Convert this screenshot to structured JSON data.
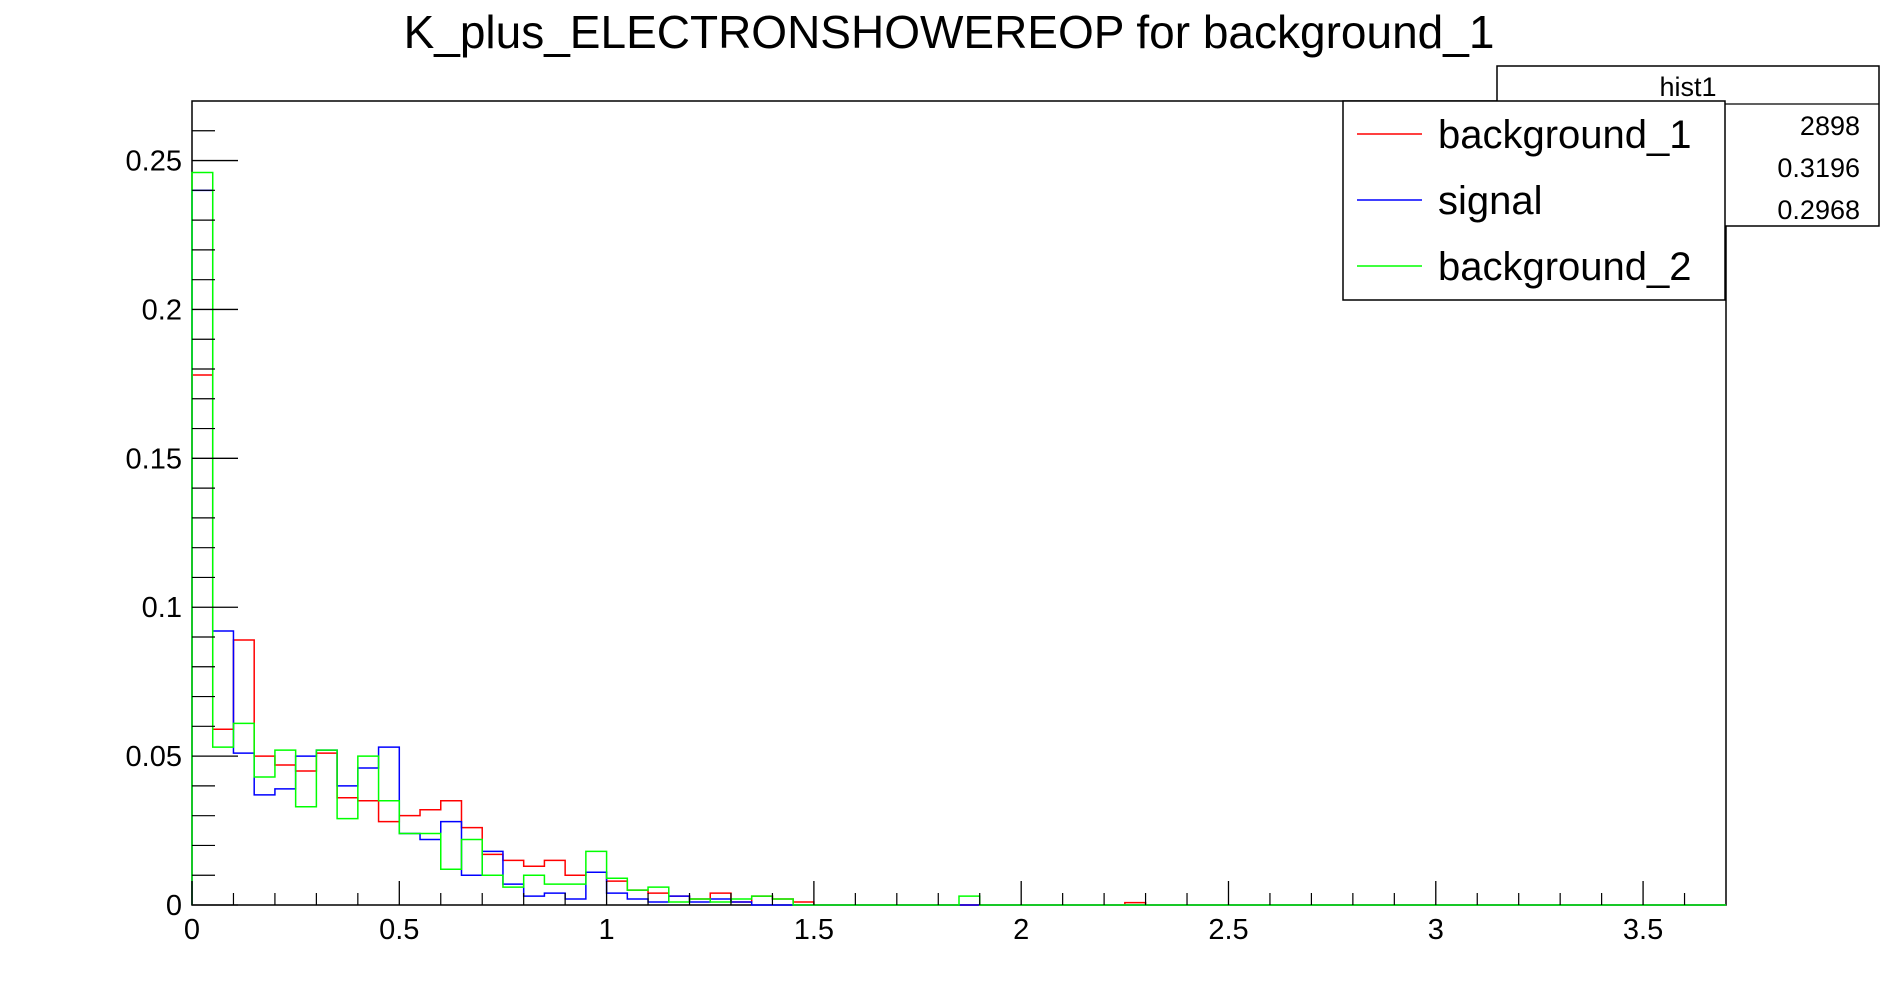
{
  "chart_data": {
    "type": "histogram",
    "title": "K_plus_ELECTRONSHOWEREOP for background_1",
    "xlabel": "",
    "ylabel": "",
    "xlim": [
      0,
      3.7
    ],
    "ylim": [
      0,
      0.27
    ],
    "bin_width": 0.05,
    "x_ticks": [
      0,
      0.5,
      1,
      1.5,
      2,
      2.5,
      3,
      3.5
    ],
    "x_tick_labels": [
      "0",
      "0.5",
      "1",
      "1.5",
      "2",
      "2.5",
      "3",
      "3.5"
    ],
    "y_ticks": [
      0,
      0.05,
      0.1,
      0.15,
      0.2,
      0.25
    ],
    "y_tick_labels": [
      "0",
      "0.05",
      "0.1",
      "0.15",
      "0.2",
      "0.25"
    ],
    "grid": false,
    "legend_position": "top-right",
    "series": [
      {
        "name": "background_1",
        "color": "#ff0000",
        "bins": [
          [
            0,
            0.178
          ],
          [
            0.05,
            0.059
          ],
          [
            0.1,
            0.089
          ],
          [
            0.15,
            0.05
          ],
          [
            0.2,
            0.047
          ],
          [
            0.25,
            0.045
          ],
          [
            0.3,
            0.051
          ],
          [
            0.35,
            0.036
          ],
          [
            0.4,
            0.035
          ],
          [
            0.45,
            0.028
          ],
          [
            0.5,
            0.03
          ],
          [
            0.55,
            0.032
          ],
          [
            0.6,
            0.035
          ],
          [
            0.65,
            0.026
          ],
          [
            0.7,
            0.017
          ],
          [
            0.75,
            0.015
          ],
          [
            0.8,
            0.013
          ],
          [
            0.85,
            0.015
          ],
          [
            0.9,
            0.01
          ],
          [
            0.95,
            0.011
          ],
          [
            1.0,
            0.008
          ],
          [
            1.05,
            0.005
          ],
          [
            1.1,
            0.004
          ],
          [
            1.15,
            0.003
          ],
          [
            1.2,
            0.002
          ],
          [
            1.25,
            0.004
          ],
          [
            1.3,
            0.001
          ],
          [
            1.35,
            0.003
          ],
          [
            1.4,
            0.002
          ],
          [
            1.45,
            0.001
          ],
          [
            2.25,
            0.0008
          ]
        ]
      },
      {
        "name": "signal",
        "color": "#0000ff",
        "bins": [
          [
            0,
            0.24
          ],
          [
            0.05,
            0.092
          ],
          [
            0.1,
            0.051
          ],
          [
            0.15,
            0.037
          ],
          [
            0.2,
            0.039
          ],
          [
            0.25,
            0.05
          ],
          [
            0.3,
            0.052
          ],
          [
            0.35,
            0.04
          ],
          [
            0.4,
            0.046
          ],
          [
            0.45,
            0.053
          ],
          [
            0.5,
            0.024
          ],
          [
            0.55,
            0.022
          ],
          [
            0.6,
            0.028
          ],
          [
            0.65,
            0.01
          ],
          [
            0.7,
            0.018
          ],
          [
            0.75,
            0.007
          ],
          [
            0.8,
            0.003
          ],
          [
            0.85,
            0.004
          ],
          [
            0.9,
            0.002
          ],
          [
            0.95,
            0.011
          ],
          [
            1.0,
            0.004
          ],
          [
            1.05,
            0.002
          ],
          [
            1.1,
            0.001
          ],
          [
            1.15,
            0.003
          ],
          [
            1.2,
            0.001
          ],
          [
            1.25,
            0.002
          ],
          [
            1.3,
            0.001
          ]
        ]
      },
      {
        "name": "background_2",
        "color": "#00ff00",
        "bins": [
          [
            0,
            0.246
          ],
          [
            0.05,
            0.053
          ],
          [
            0.1,
            0.061
          ],
          [
            0.15,
            0.043
          ],
          [
            0.2,
            0.052
          ],
          [
            0.25,
            0.033
          ],
          [
            0.3,
            0.052
          ],
          [
            0.35,
            0.029
          ],
          [
            0.4,
            0.05
          ],
          [
            0.45,
            0.035
          ],
          [
            0.5,
            0.024
          ],
          [
            0.55,
            0.024
          ],
          [
            0.6,
            0.012
          ],
          [
            0.65,
            0.022
          ],
          [
            0.7,
            0.01
          ],
          [
            0.75,
            0.006
          ],
          [
            0.8,
            0.01
          ],
          [
            0.85,
            0.007
          ],
          [
            0.9,
            0.007
          ],
          [
            0.95,
            0.018
          ],
          [
            1.0,
            0.009
          ],
          [
            1.05,
            0.005
          ],
          [
            1.1,
            0.006
          ],
          [
            1.15,
            0.001
          ],
          [
            1.2,
            0.002
          ],
          [
            1.25,
            0.001
          ],
          [
            1.3,
            0.002
          ],
          [
            1.35,
            0.003
          ],
          [
            1.4,
            0.002
          ],
          [
            1.85,
            0.003
          ]
        ]
      }
    ]
  },
  "stats_box": {
    "title": "hist1",
    "values": [
      "2898",
      "0.3196",
      "0.2968"
    ]
  }
}
